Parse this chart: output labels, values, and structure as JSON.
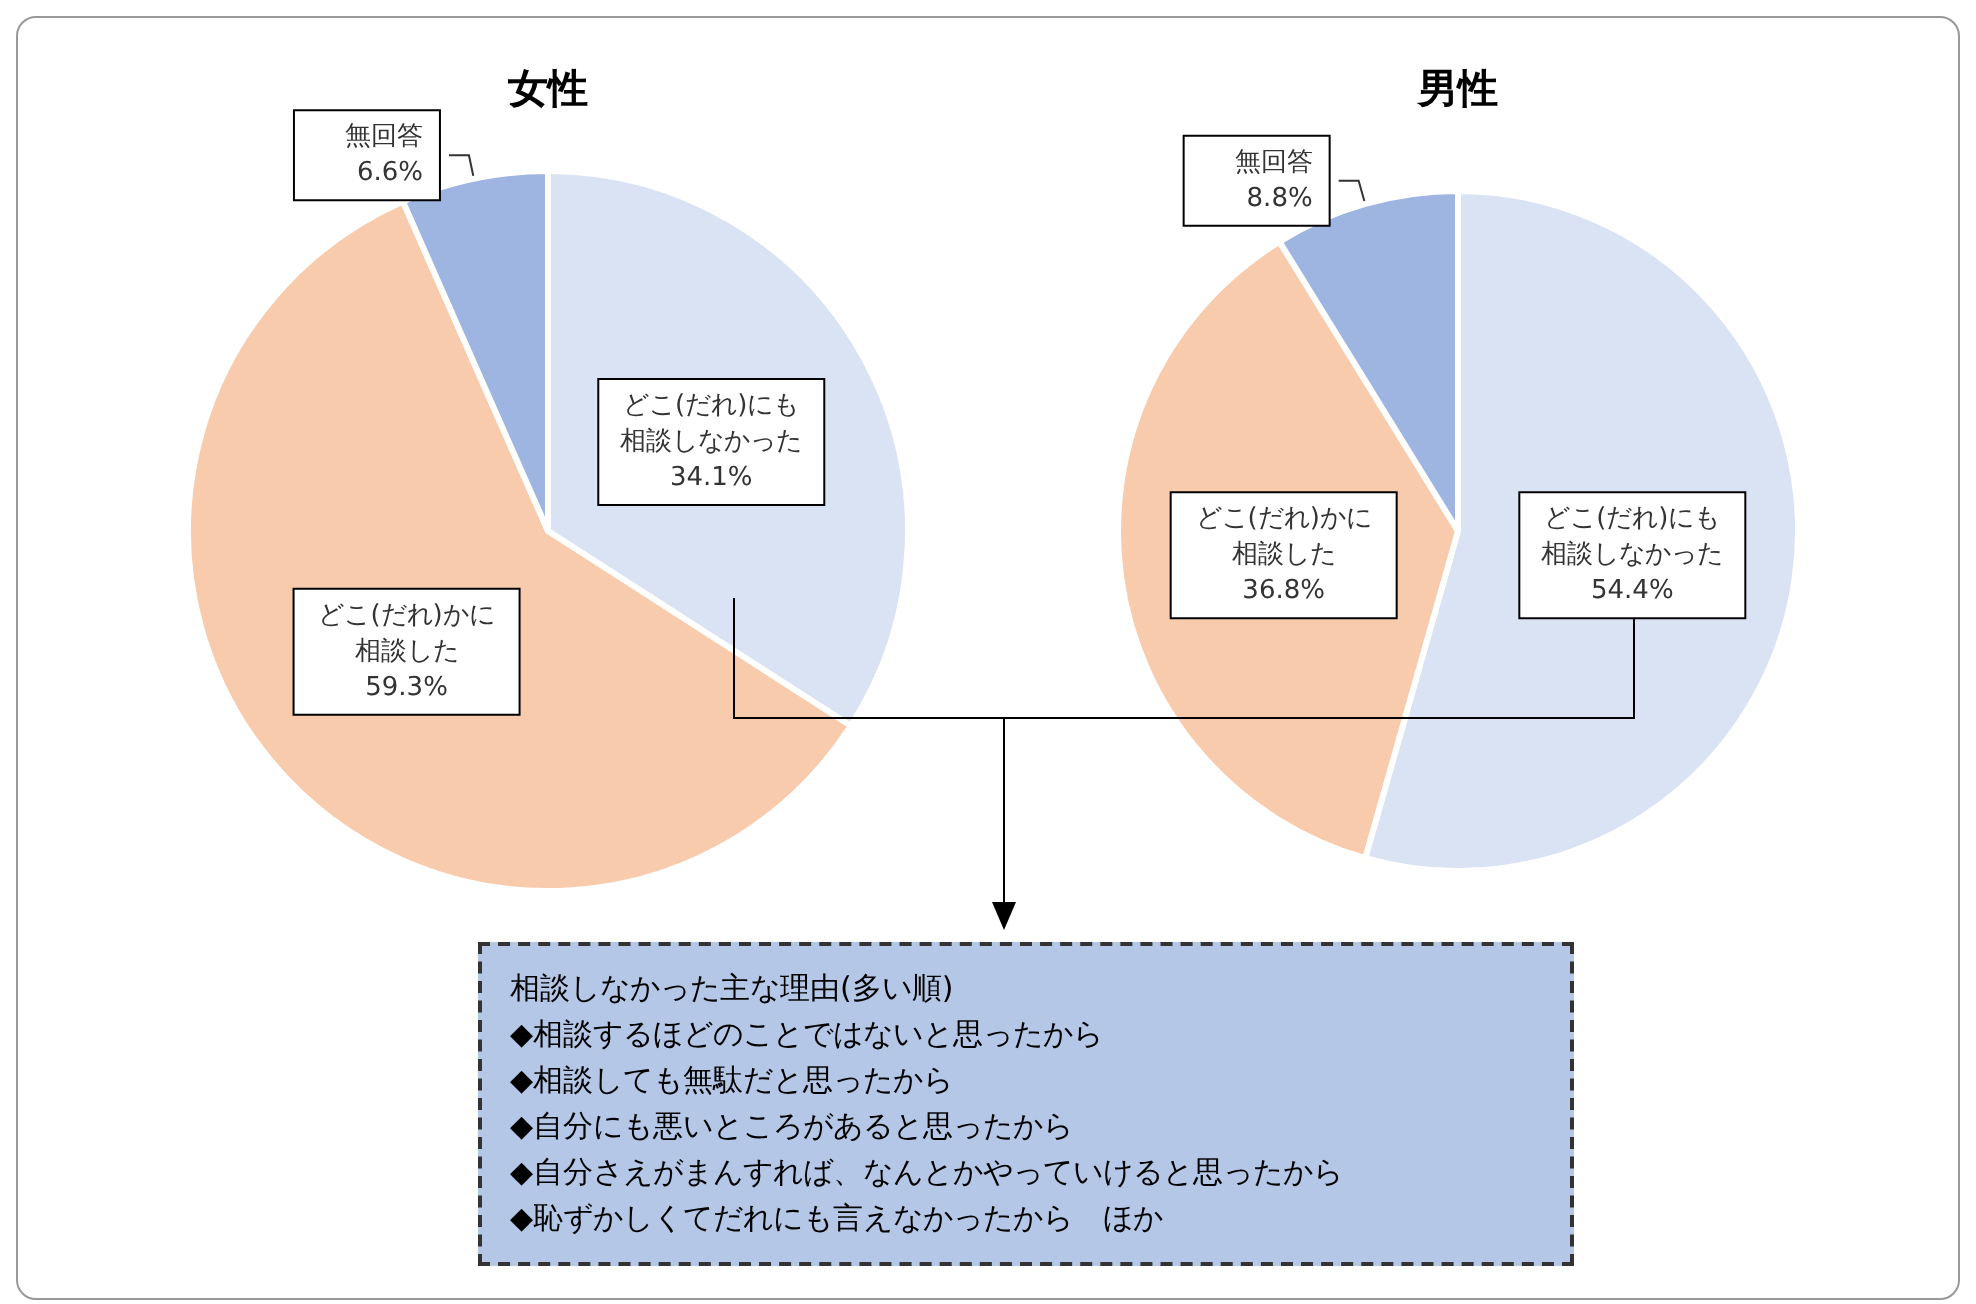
{
  "chart_data": [
    {
      "type": "pie",
      "title": "女性",
      "categories": [
        "どこ(だれ)にも相談しなかった",
        "どこ(だれ)かに相談した",
        "無回答"
      ],
      "values": [
        34.1,
        59.3,
        6.6
      ],
      "value_labels": [
        "34.1%",
        "59.3%",
        "6.6%"
      ],
      "colors": [
        "#dae3f3",
        "#f8cbad",
        "#9db5e0"
      ],
      "legend": false
    },
    {
      "type": "pie",
      "title": "男性",
      "categories": [
        "どこ(だれ)にも相談しなかった",
        "どこ(だれ)かに相談した",
        "無回答"
      ],
      "values": [
        54.4,
        36.8,
        8.8
      ],
      "value_labels": [
        "54.4%",
        "36.8%",
        "8.8%"
      ],
      "colors": [
        "#dae3f3",
        "#f8cbad",
        "#9db5e0"
      ],
      "legend": false
    },
    {
      "type": "other",
      "title": "相談しなかった主な理由(多い順)",
      "annotations": [
        "◆相談するほどのことではないと思ったから",
        "◆相談しても無駄だと思ったから",
        "◆自分にも悪いところがあると思ったから",
        "◆自分さえがまんすれば、なんとかやっていけると思ったから",
        "◆恥ずかしくてだれにも言えなかったから　ほか"
      ]
    }
  ]
}
